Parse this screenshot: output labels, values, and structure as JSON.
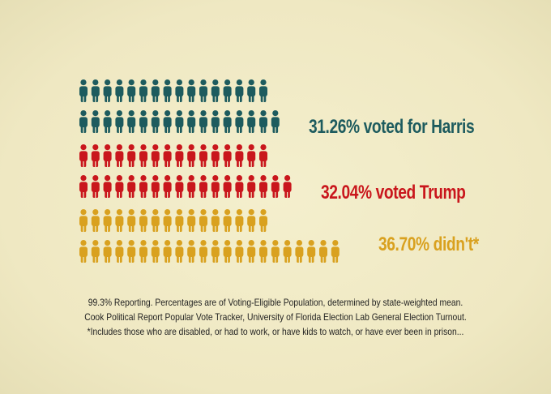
{
  "chart_data": {
    "type": "pictograph",
    "series": [
      {
        "name": "Harris",
        "value": 31.26,
        "unit": "%",
        "label": "31.26% voted for Harris",
        "color": "#1d5b5e",
        "icons_row1": 16,
        "icons_row2": 17
      },
      {
        "name": "Trump",
        "value": 32.04,
        "unit": "%",
        "label": "32.04% voted Trump",
        "color": "#c9161c",
        "icons_row1": 16,
        "icons_row2": 18
      },
      {
        "name": "Didn't vote",
        "value": 36.7,
        "unit": "%",
        "label": "36.70% didn't*",
        "color": "#d9a11f",
        "icons_row1": 16,
        "icons_row2": 22
      }
    ]
  },
  "footnotes": [
    "99.3% Reporting. Percentages are of Voting-Eligible Population, determined by state-weighted mean.",
    "Cook Political Report Popular Vote Tracker, University of Florida Election Lab General Election Turnout.",
    "*Includes those who are disabled, or had to work, or have kids to watch, or have ever been in prison..."
  ]
}
